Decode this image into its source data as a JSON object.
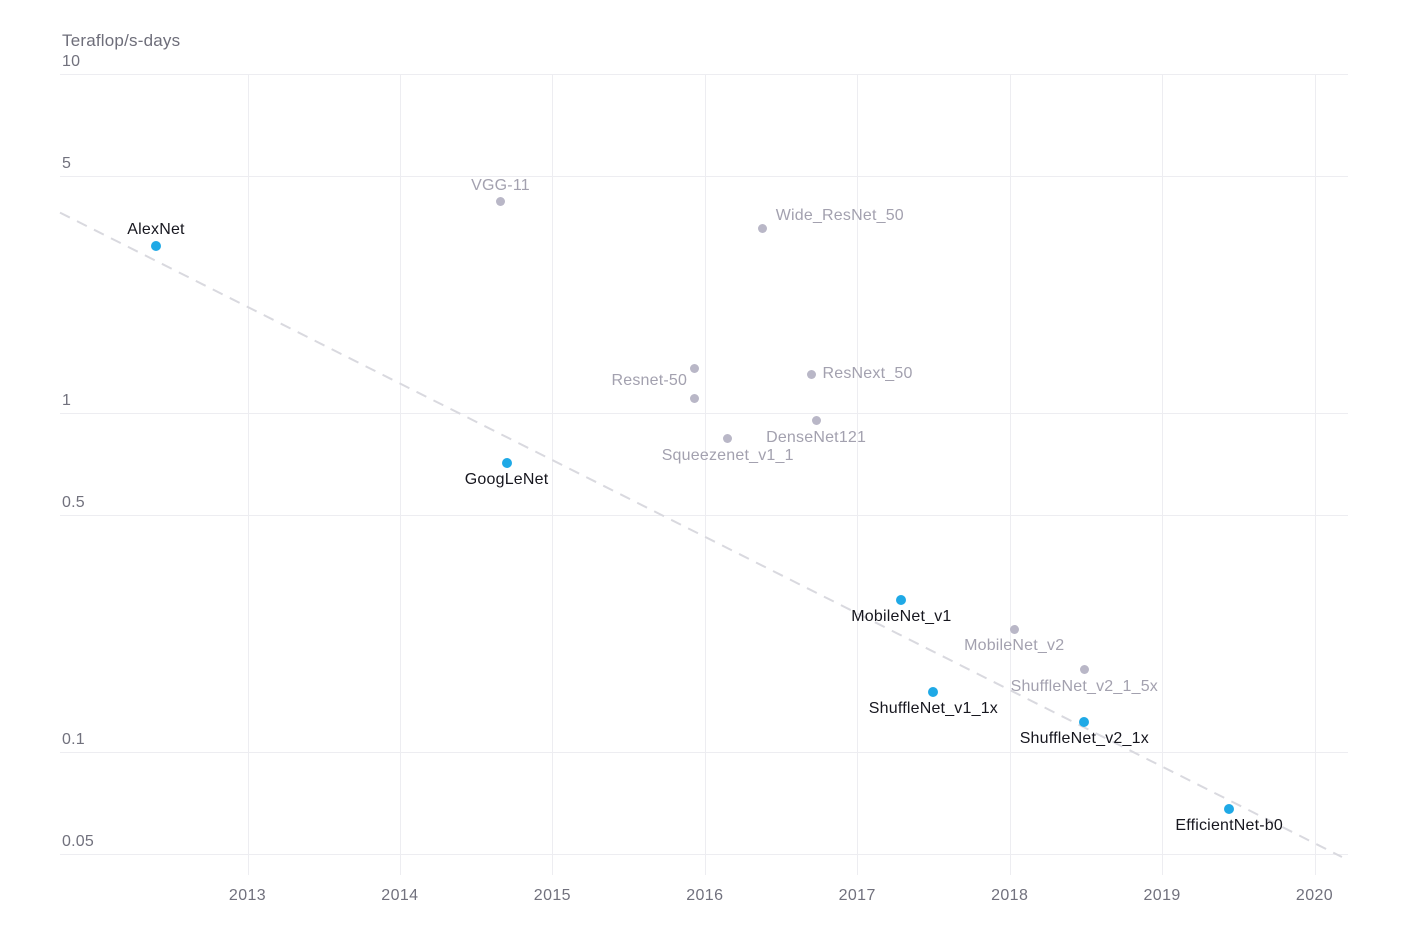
{
  "colors": {
    "background": "#ffffff",
    "gridline": "#ededf1",
    "axis_label": "#71717d",
    "axis_title": "#6e6e7a",
    "highlight_point": "#1fa9e6",
    "highlight_label": "#17171f",
    "muted_point": "#b9b7c7",
    "muted_label": "#a3a1af",
    "trend": "#d9d9df"
  },
  "chart_data": {
    "type": "scatter",
    "title": "",
    "ylabel": "Teraflop/s-days",
    "xlabel": "",
    "y_scale": "log",
    "x_scale": "linear",
    "grid": true,
    "legend": "none",
    "x_domain": [
      2011.77,
      2020.2
    ],
    "y_domain": [
      0.05,
      10
    ],
    "x_ticks": [
      "2013",
      "2014",
      "2015",
      "2016",
      "2017",
      "2018",
      "2019",
      "2020"
    ],
    "x_tick_values": [
      2013,
      2014,
      2015,
      2016,
      2017,
      2018,
      2019,
      2020
    ],
    "y_ticks": [
      "10",
      "5",
      "1",
      "0.5",
      "0.1",
      "0.05"
    ],
    "y_tick_values": [
      10,
      5,
      1,
      0.5,
      0.1,
      0.05
    ],
    "series": [
      {
        "name": "highlighted",
        "color": "#1fa9e6",
        "label_color": "#17171f",
        "points": [
          {
            "label": "AlexNet",
            "x": 2012.4,
            "y": 3.1,
            "label_side": "above"
          },
          {
            "label": "GoogLeNet",
            "x": 2014.7,
            "y": 0.71,
            "label_side": "below"
          },
          {
            "label": "MobileNet_v1",
            "x": 2017.29,
            "y": 0.28,
            "label_side": "below"
          },
          {
            "label": "ShuffleNet_v1_1x",
            "x": 2017.5,
            "y": 0.15,
            "label_side": "below"
          },
          {
            "label": "ShuffleNet_v2_1x",
            "x": 2018.49,
            "y": 0.123,
            "label_side": "below"
          },
          {
            "label": "EfficientNet-b0",
            "x": 2019.44,
            "y": 0.068,
            "label_side": "below"
          }
        ]
      },
      {
        "name": "muted",
        "color": "#b9b7c7",
        "label_color": "#a3a1af",
        "points": [
          {
            "label": "VGG-11",
            "x": 2014.66,
            "y": 4.2,
            "label_side": "above"
          },
          {
            "label": "Wide_ResNet_50",
            "x": 2016.38,
            "y": 3.5,
            "label_side": "right-above"
          },
          {
            "label": "Resnet-50",
            "x": 2015.93,
            "y": 1.35,
            "label_side": "left-below"
          },
          {
            "label": "",
            "x": 2015.93,
            "y": 1.1,
            "label_side": "none"
          },
          {
            "label": "ResNext_50",
            "x": 2016.7,
            "y": 1.3,
            "label_side": "right"
          },
          {
            "label": "DenseNet121",
            "x": 2016.73,
            "y": 0.95,
            "label_side": "below"
          },
          {
            "label": "Squeezenet_v1_1",
            "x": 2016.15,
            "y": 0.84,
            "label_side": "below"
          },
          {
            "label": "MobileNet_v2",
            "x": 2018.03,
            "y": 0.23,
            "label_side": "below"
          },
          {
            "label": "ShuffleNet_v2_1_5x",
            "x": 2018.49,
            "y": 0.175,
            "label_side": "below"
          }
        ]
      }
    ],
    "trend_line": {
      "style": "dashed",
      "color": "#d9d9df",
      "x1": 2011.77,
      "y1": 3.9,
      "x2": 2020.18,
      "y2": 0.049
    }
  }
}
